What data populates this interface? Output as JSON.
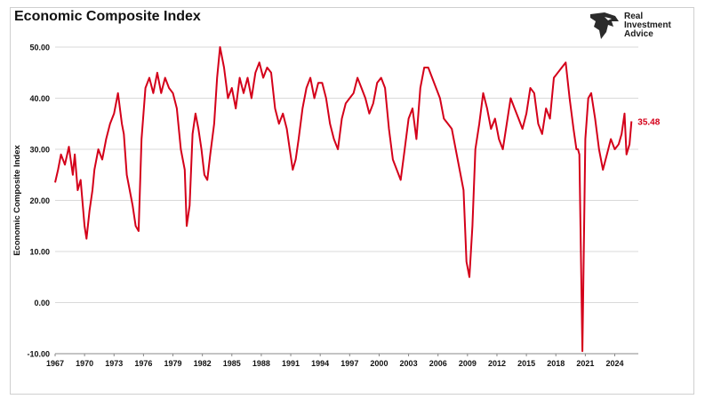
{
  "header": {
    "title": "Economic Composite Index"
  },
  "logo": {
    "line1": "Real",
    "line2": "Investment",
    "line3": "Advice"
  },
  "chart_data": {
    "type": "line",
    "title": "Economic Composite Index",
    "xlabel": "",
    "ylabel": "Economic Composite Index",
    "xlim": [
      1967,
      2026.4
    ],
    "ylim": [
      -10,
      50
    ],
    "yticks": [
      -10,
      0,
      10,
      20,
      30,
      40,
      50
    ],
    "ytick_labels": [
      "-10.00",
      "0.00",
      "10.00",
      "20.00",
      "30.00",
      "40.00",
      "50.00"
    ],
    "xticks": [
      1967,
      1970,
      1973,
      1976,
      1979,
      1982,
      1985,
      1988,
      1991,
      1994,
      1997,
      2000,
      2003,
      2006,
      2009,
      2012,
      2015,
      2018,
      2021,
      2024
    ],
    "grid": true,
    "line_color": "#d4001a",
    "last_value_label": "35.48",
    "series": [
      {
        "name": "",
        "x": [
          1967.0,
          1967.3,
          1967.6,
          1968.0,
          1968.4,
          1968.8,
          1969.0,
          1969.3,
          1969.6,
          1970.0,
          1970.2,
          1970.5,
          1970.8,
          1971.0,
          1971.4,
          1971.8,
          1972.2,
          1972.6,
          1973.0,
          1973.4,
          1973.8,
          1974.0,
          1974.3,
          1974.6,
          1974.9,
          1975.2,
          1975.5,
          1975.8,
          1976.2,
          1976.6,
          1977.0,
          1977.4,
          1977.8,
          1978.2,
          1978.6,
          1979.0,
          1979.4,
          1979.8,
          1980.2,
          1980.4,
          1980.7,
          1981.0,
          1981.3,
          1981.6,
          1981.9,
          1982.2,
          1982.5,
          1982.8,
          1983.2,
          1983.5,
          1983.8,
          1984.2,
          1984.6,
          1985.0,
          1985.4,
          1985.8,
          1986.2,
          1986.6,
          1987.0,
          1987.4,
          1987.8,
          1988.2,
          1988.6,
          1989.0,
          1989.4,
          1989.8,
          1990.2,
          1990.6,
          1990.9,
          1991.2,
          1991.5,
          1991.8,
          1992.2,
          1992.6,
          1993.0,
          1993.4,
          1993.8,
          1994.2,
          1994.6,
          1995.0,
          1995.4,
          1995.8,
          1996.2,
          1996.6,
          1997.0,
          1997.4,
          1997.8,
          1998.2,
          1998.6,
          1999.0,
          1999.4,
          1999.8,
          2000.2,
          2000.6,
          2001.0,
          2001.4,
          2001.8,
          2002.2,
          2002.6,
          2003.0,
          2003.4,
          2003.8,
          2004.2,
          2004.6,
          2005.0,
          2005.4,
          2005.8,
          2006.2,
          2006.6,
          2007.0,
          2007.4,
          2007.8,
          2008.2,
          2008.6,
          2008.9,
          2009.2,
          2009.5,
          2009.8,
          2010.2,
          2010.6,
          2011.0,
          2011.4,
          2011.8,
          2012.2,
          2012.6,
          2013.0,
          2013.4,
          2013.8,
          2014.2,
          2014.6,
          2015.0,
          2015.4,
          2015.8,
          2016.2,
          2016.6,
          2017.0,
          2017.4,
          2017.8,
          2018.2,
          2018.6,
          2019.0,
          2019.4,
          2019.8,
          2020.1,
          2020.25,
          2020.4,
          2020.7,
          2021.0,
          2021.3,
          2021.6,
          2022.0,
          2022.4,
          2022.8,
          2023.2,
          2023.6,
          2024.0,
          2024.4,
          2024.7,
          2025.0,
          2025.2,
          2025.5,
          2025.7
        ],
        "values": [
          23.5,
          26,
          29,
          27,
          30.5,
          25,
          29,
          22,
          24,
          15,
          12.5,
          18,
          22,
          26,
          30,
          28,
          32,
          35,
          37,
          41,
          35,
          33,
          25,
          22,
          19,
          15,
          14,
          32,
          42,
          44,
          41,
          45,
          41,
          44,
          42,
          41,
          38,
          30,
          26,
          15,
          19,
          33,
          37,
          34,
          30,
          25,
          24,
          29,
          35,
          44,
          50,
          46,
          40,
          42,
          38,
          44,
          41,
          44,
          40,
          45,
          47,
          44,
          46,
          45,
          38,
          35,
          37,
          34,
          30,
          26,
          28,
          32,
          38,
          42,
          44,
          40,
          43,
          43,
          40,
          35,
          32,
          30,
          36,
          39,
          40,
          41,
          44,
          42,
          40,
          37,
          39,
          43,
          44,
          42,
          34,
          28,
          26,
          24,
          30,
          36,
          38,
          32,
          42,
          46,
          46,
          44,
          42,
          40,
          36,
          35,
          34,
          30,
          26,
          22,
          8,
          5,
          15,
          30,
          35,
          41,
          38,
          34,
          36,
          32,
          30,
          35,
          40,
          38,
          36,
          34,
          37,
          42,
          41,
          35,
          33,
          38,
          36,
          44,
          45,
          46,
          47,
          40,
          34,
          30,
          30,
          29,
          -9.5,
          32,
          40,
          41,
          36,
          30,
          26,
          29,
          32,
          30,
          31,
          33,
          37,
          29,
          31,
          35.48
        ]
      }
    ]
  }
}
